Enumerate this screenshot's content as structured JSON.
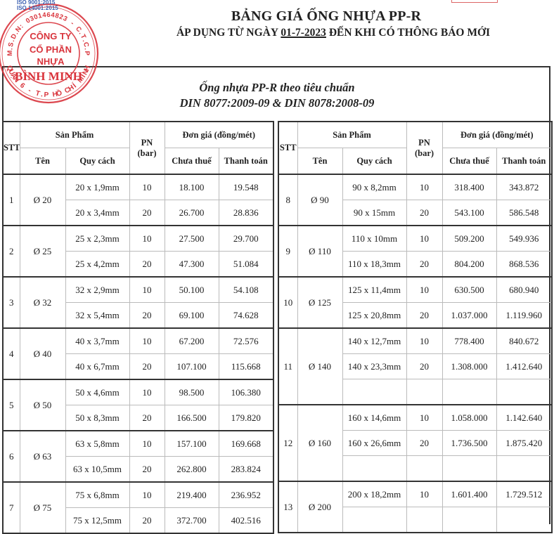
{
  "header": {
    "title": "BẢNG GIÁ ỐNG NHỰA PP-R",
    "subtitle_before": "ÁP DỤNG TỪ NGÀY ",
    "subtitle_date": "01-7-2023",
    "subtitle_after": " ĐẾN KHI CÓ THÔNG BÁO MỚI",
    "iso_lines": [
      "ISO 9001:2015",
      "ISO 14001:2015"
    ]
  },
  "stamp": {
    "ring_top": "M.S.D.N: 0301464823 - C.T.C.P",
    "ring_bottom": "QUẬN 6 - T.P HỒ CHÍ MINH",
    "line1": "CÔNG TY",
    "line2": "CỔ PHẦN",
    "line3": "NHỰA",
    "line4": "BÌNH MINH",
    "color": "#d9343c"
  },
  "standard": {
    "line1": "Ống nhựa PP-R theo tiêu chuẩn",
    "line2": "DIN 8077:2009-09 & DIN 8078:2008-09"
  },
  "table_headers": {
    "stt": "STT",
    "product": "Sản Phẩm",
    "name": "Tên",
    "spec": "Quy cách",
    "pn": "PN",
    "pn_unit": "(bar)",
    "price": "Đơn giá (đồng/mét)",
    "pre_tax": "Chưa thuế",
    "total": "Thanh toán"
  },
  "left_table": [
    {
      "stt": "1",
      "name": "Ø 20",
      "rows": [
        [
          "20 x 1,9mm",
          "10",
          "18.100",
          "19.548"
        ],
        [
          "20 x 3,4mm",
          "20",
          "26.700",
          "28.836"
        ]
      ]
    },
    {
      "stt": "2",
      "name": "Ø 25",
      "rows": [
        [
          "25 x 2,3mm",
          "10",
          "27.500",
          "29.700"
        ],
        [
          "25 x 4,2mm",
          "20",
          "47.300",
          "51.084"
        ]
      ]
    },
    {
      "stt": "3",
      "name": "Ø 32",
      "rows": [
        [
          "32 x 2,9mm",
          "10",
          "50.100",
          "54.108"
        ],
        [
          "32 x 5,4mm",
          "20",
          "69.100",
          "74.628"
        ]
      ]
    },
    {
      "stt": "4",
      "name": "Ø 40",
      "rows": [
        [
          "40 x 3,7mm",
          "10",
          "67.200",
          "72.576"
        ],
        [
          "40 x 6,7mm",
          "20",
          "107.100",
          "115.668"
        ]
      ]
    },
    {
      "stt": "5",
      "name": "Ø 50",
      "rows": [
        [
          "50 x 4,6mm",
          "10",
          "98.500",
          "106.380"
        ],
        [
          "50 x 8,3mm",
          "20",
          "166.500",
          "179.820"
        ]
      ]
    },
    {
      "stt": "6",
      "name": "Ø 63",
      "rows": [
        [
          "63 x 5,8mm",
          "10",
          "157.100",
          "169.668"
        ],
        [
          "63 x 10,5mm",
          "20",
          "262.800",
          "283.824"
        ]
      ]
    },
    {
      "stt": "7",
      "name": "Ø 75",
      "rows": [
        [
          "75 x 6,8mm",
          "10",
          "219.400",
          "236.952"
        ],
        [
          "75 x 12,5mm",
          "20",
          "372.700",
          "402.516"
        ]
      ]
    }
  ],
  "right_table": [
    {
      "stt": "8",
      "name": "Ø 90",
      "rows": [
        [
          "90 x 8,2mm",
          "10",
          "318.400",
          "343.872"
        ],
        [
          "90 x 15mm",
          "20",
          "543.100",
          "586.548"
        ]
      ]
    },
    {
      "stt": "9",
      "name": "Ø 110",
      "rows": [
        [
          "110 x 10mm",
          "10",
          "509.200",
          "549.936"
        ],
        [
          "110 x 18,3mm",
          "20",
          "804.200",
          "868.536"
        ]
      ]
    },
    {
      "stt": "10",
      "name": "Ø 125",
      "rows": [
        [
          "125 x 11,4mm",
          "10",
          "630.500",
          "680.940"
        ],
        [
          "125 x 20,8mm",
          "20",
          "1.037.000",
          "1.119.960"
        ]
      ]
    },
    {
      "stt": "11",
      "name": "Ø 140",
      "rows": [
        [
          "140 x 12,7mm",
          "10",
          "778.400",
          "840.672"
        ],
        [
          "140 x 23,3mm",
          "20",
          "1.308.000",
          "1.412.640"
        ],
        [
          "",
          "",
          "",
          ""
        ]
      ]
    },
    {
      "stt": "12",
      "name": "Ø 160",
      "rows": [
        [
          "160 x 14,6mm",
          "10",
          "1.058.000",
          "1.142.640"
        ],
        [
          "160 x 26,6mm",
          "20",
          "1.736.500",
          "1.875.420"
        ],
        [
          "",
          "",
          "",
          ""
        ]
      ]
    },
    {
      "stt": "13",
      "name": "Ø 200",
      "rows": [
        [
          "200 x 18,2mm",
          "10",
          "1.601.400",
          "1.729.512"
        ],
        [
          "",
          "",
          "",
          ""
        ]
      ]
    }
  ]
}
